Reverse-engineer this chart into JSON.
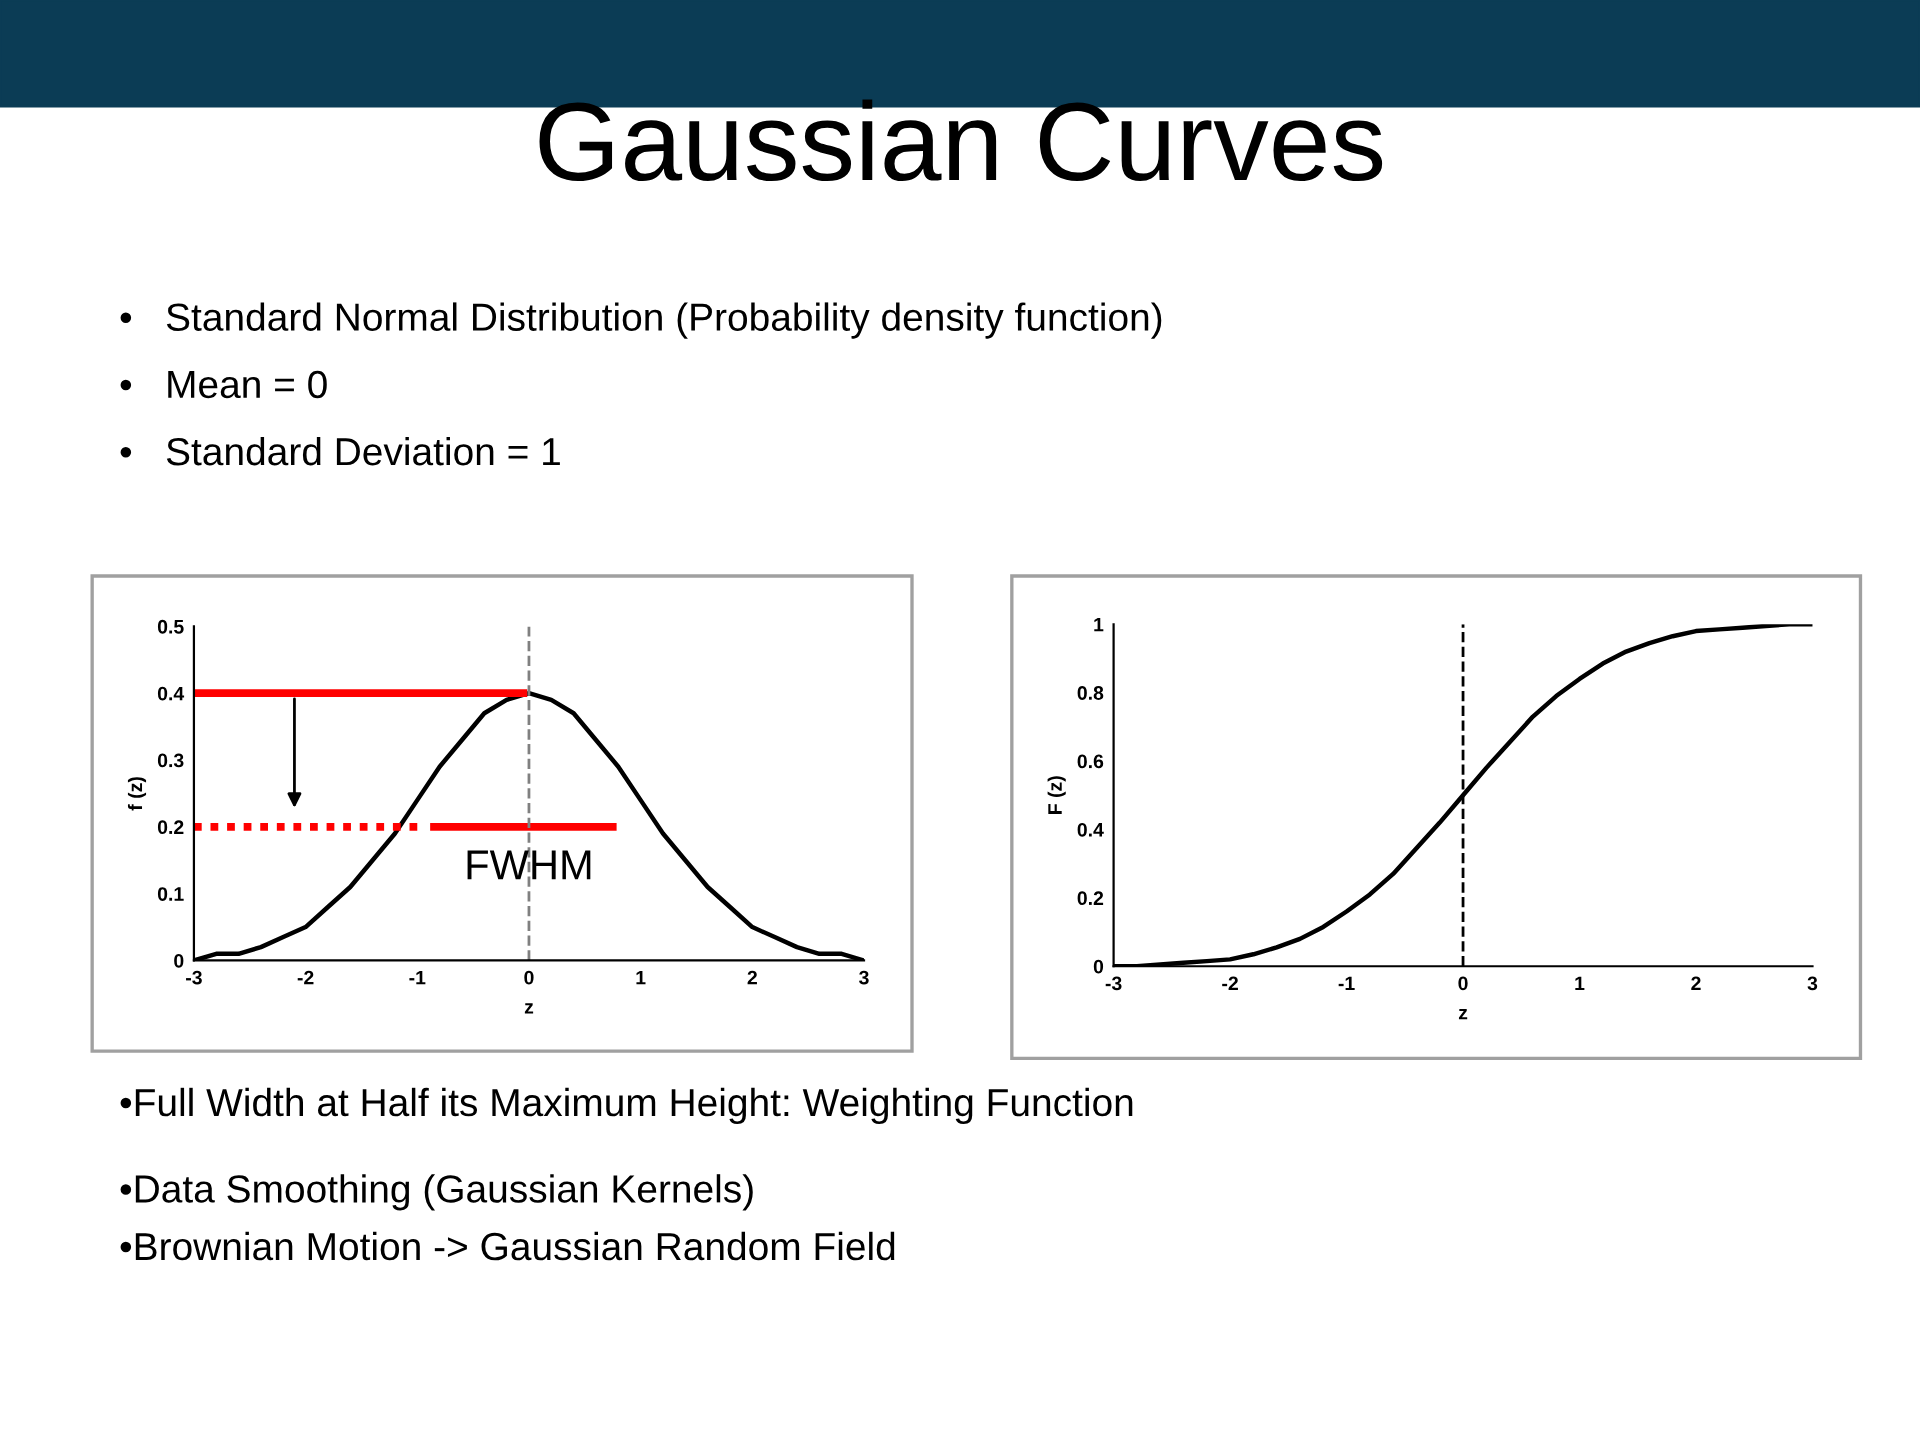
{
  "chart_data": [
    {
      "type": "line",
      "title": "Gaussian Curves",
      "subtitle": "•   Standard Normal Distribution (Probability density function)\n•   Mean = 0\n•   Standard Deviation = 1",
      "xlabel": "z",
      "ylabel": "f (z)",
      "x": [
        -3,
        -2.8,
        -2.6,
        -2.4,
        -2.2,
        -2,
        -1.8,
        -1.6,
        -1.4,
        -1.2,
        -1,
        -0.8,
        -0.6,
        -0.4,
        -0.2,
        0,
        0.2,
        0.4,
        0.6,
        0.8,
        1,
        1.2,
        1.4,
        1.6,
        1.8,
        2,
        2.2,
        2.4,
        2.6,
        2.8,
        3
      ],
      "series": [
        {
          "color": "#000000",
          "values": [
            0.0,
            0.01,
            0.01,
            0.02,
            0.035,
            0.05,
            0.08,
            0.11,
            0.15,
            0.19,
            0.24,
            0.29,
            0.33,
            0.37,
            0.39,
            0.4,
            0.39,
            0.37,
            0.33,
            0.29,
            0.24,
            0.19,
            0.15,
            0.11,
            0.08,
            0.05,
            0.035,
            0.02,
            0.01,
            0.01,
            0.0
          ]
        },
        {
          "type": "line",
          "color": "#ff0000",
          "x": [
            -3,
            -0.05
          ],
          "values": [
            0.4,
            0.4
          ],
          "line_style": "solid"
        },
        {
          "type": "line",
          "color": "#ff0000",
          "x": [
            -3,
            -1.0
          ],
          "values": [
            0.2,
            0.2
          ],
          "line_style": "dotted"
        },
        {
          "type": "line",
          "color": "#ff0000",
          "x": [
            -0.85,
            0.75
          ],
          "values": [
            0.2,
            0.2
          ],
          "line_style": "solid"
        }
      ],
      "ref_lines": [
        {
          "axis": "x",
          "value": 0,
          "color": "#808080",
          "line_style": "dashed"
        }
      ],
      "xlim": [
        -3,
        3
      ],
      "xticks": [
        -3,
        -2,
        -1,
        0,
        1,
        2,
        3
      ],
      "ylim": [
        0,
        0.5
      ],
      "yticks": [
        0,
        0.1,
        0.2,
        0.3,
        0.4,
        0.5
      ],
      "grid": false,
      "legend": false,
      "marker": "none",
      "line_style": "solid",
      "annotations": [
        {
          "text": "FWHM",
          "x": 0,
          "y": 0.2
        },
        "•Full Width at Half its Maximum Height: Weighting Function",
        "•Data Smoothing (Gaussian Kernels)",
        "•Brownian Motion -> Gaussian Random Field"
      ]
    },
    {
      "type": "line",
      "xlabel": "z",
      "ylabel": "F (z)",
      "x": [
        -3,
        -2.8,
        -2.6,
        -2.4,
        -2.2,
        -2,
        -1.8,
        -1.6,
        -1.4,
        -1.2,
        -1,
        -0.8,
        -0.6,
        -0.4,
        -0.2,
        0,
        0.2,
        0.4,
        0.6,
        0.8,
        1,
        1.2,
        1.4,
        1.6,
        1.8,
        2,
        2.2,
        2.4,
        2.6,
        2.8,
        3
      ],
      "series": [
        {
          "color": "#000000",
          "values": [
            0.0,
            0.0,
            0.005,
            0.01,
            0.015,
            0.02,
            0.035,
            0.055,
            0.08,
            0.115,
            0.16,
            0.21,
            0.27,
            0.345,
            0.42,
            0.5,
            0.58,
            0.655,
            0.73,
            0.79,
            0.84,
            0.885,
            0.92,
            0.945,
            0.965,
            0.98,
            0.985,
            0.99,
            0.995,
            1.0,
            1.0
          ]
        }
      ],
      "ref_lines": [
        {
          "axis": "x",
          "value": 0,
          "color": "#000000",
          "line_style": "dashed"
        }
      ],
      "xlim": [
        -3,
        3
      ],
      "xticks": [
        -3,
        -2,
        -1,
        0,
        1,
        2,
        3
      ],
      "ylim": [
        0,
        1
      ],
      "yticks": [
        0,
        0.2,
        0.4,
        0.6,
        0.8,
        1
      ],
      "grid": false,
      "legend": false,
      "marker": "none",
      "line_style": "solid"
    }
  ]
}
